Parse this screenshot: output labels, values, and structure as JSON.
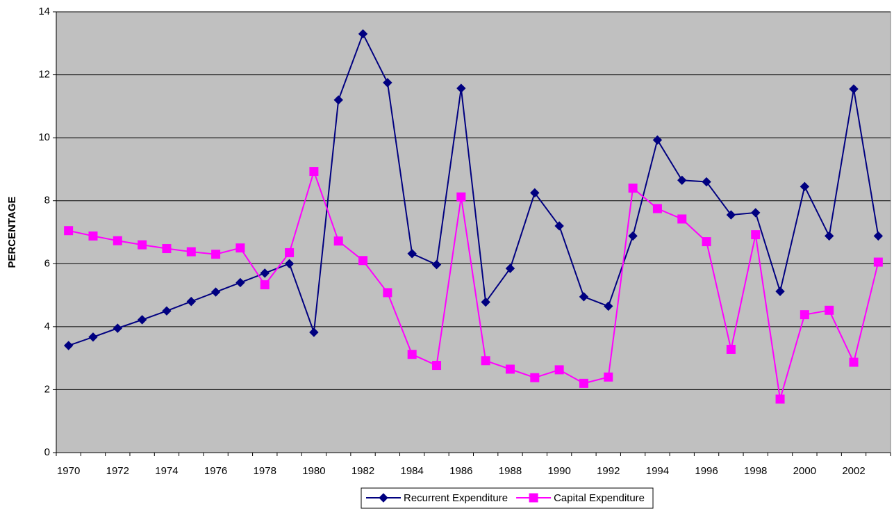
{
  "chart_data": {
    "type": "line",
    "ylabel": "PERCENTAGE",
    "categories": [
      "1970",
      null,
      "1972",
      null,
      "1974",
      null,
      "1976",
      null,
      "1978",
      null,
      "1980",
      null,
      "1982",
      null,
      "1984",
      null,
      "1986",
      null,
      "1988",
      null,
      "1990",
      null,
      "1992",
      null,
      "1994",
      null,
      "1996",
      null,
      "1998",
      null,
      "2000",
      null,
      "2002",
      null
    ],
    "series": [
      {
        "name": "Recurrent Expenditure",
        "color": "#000080",
        "marker": "diamond",
        "values": [
          3.4,
          3.67,
          3.95,
          4.22,
          4.5,
          4.8,
          5.1,
          5.4,
          5.7,
          6.0,
          3.82,
          11.2,
          13.3,
          11.75,
          6.32,
          5.97,
          11.57,
          4.78,
          5.85,
          8.25,
          7.2,
          4.95,
          4.65,
          6.88,
          9.93,
          8.65,
          8.6,
          7.55,
          7.62,
          5.12,
          8.45,
          6.88,
          11.55,
          6.88
        ]
      },
      {
        "name": "Capital Expenditure",
        "color": "#ff00ff",
        "marker": "square",
        "values": [
          7.05,
          6.88,
          6.73,
          6.6,
          6.48,
          6.38,
          6.3,
          6.5,
          5.33,
          6.35,
          8.93,
          6.72,
          6.1,
          5.08,
          3.12,
          2.77,
          8.12,
          2.92,
          2.65,
          2.38,
          2.63,
          2.2,
          2.4,
          8.4,
          7.75,
          7.42,
          6.7,
          3.28,
          6.92,
          1.7,
          4.38,
          4.52,
          2.87,
          6.05
        ]
      }
    ],
    "ylim": [
      0,
      14
    ],
    "yticks": [
      0,
      2,
      4,
      6,
      8,
      10,
      12,
      14
    ],
    "grid": true,
    "legend": "bottom"
  }
}
